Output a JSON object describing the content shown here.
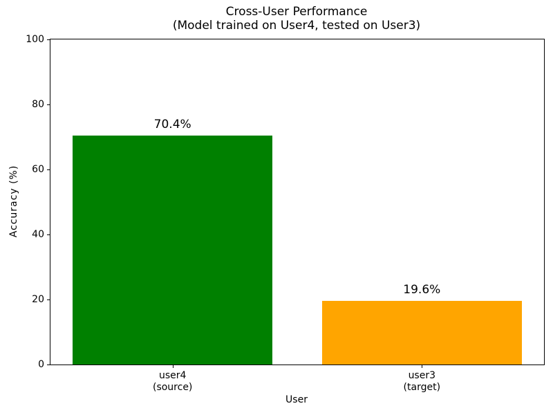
{
  "chart_data": {
    "type": "bar",
    "title": "Cross-User Performance",
    "subtitle": "(Model trained on User4, tested on User3)",
    "xlabel": "User",
    "ylabel": "Accuracy (%)",
    "categories": [
      "user4\n(source)",
      "user3\n(target)"
    ],
    "values": [
      70.4,
      19.6
    ],
    "bar_labels": [
      "70.4%",
      "19.6%"
    ],
    "bar_colors": [
      "#008000",
      "#FFA500"
    ],
    "ylim": [
      0,
      100
    ],
    "yticks": [
      0,
      20,
      40,
      60,
      80,
      100
    ],
    "xlim": [
      -0.49,
      1.49
    ],
    "bar_width": 0.8,
    "grid": false,
    "legend": "none",
    "text_color": "#000000"
  }
}
